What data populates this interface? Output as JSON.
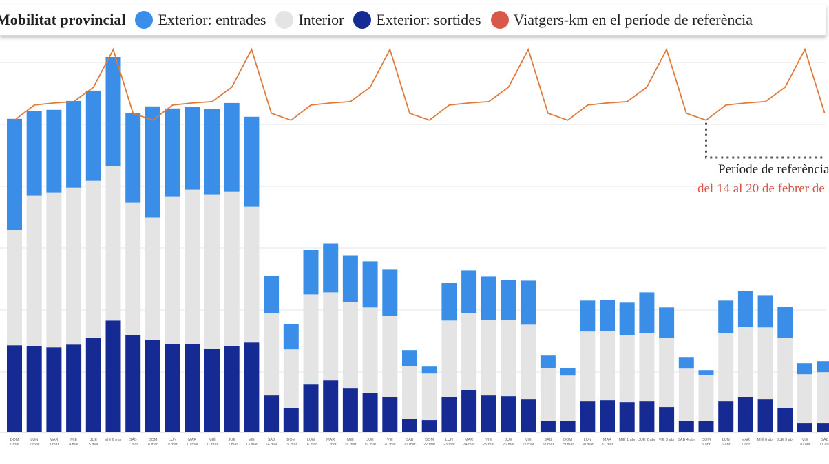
{
  "legend": {
    "title": "Mobilitat provincial",
    "items": [
      {
        "label": "Exterior: entrades",
        "color": "#3a8ee8"
      },
      {
        "label": "Interior",
        "color": "#e4e4e4"
      },
      {
        "label": "Exterior: sortides",
        "color": "#162a94"
      },
      {
        "label": "Viatgers-km en el període de referència",
        "color": "#d8594a"
      }
    ]
  },
  "annotation": {
    "title": "Període de referència",
    "subtitle": "del 14 al 20 de febrer de"
  },
  "colors": {
    "entrades": "#3a8ee8",
    "interior": "#e4e4e4",
    "sortides": "#162a94",
    "line": "#e07a3a",
    "grid": "#e6e6e6",
    "dotted": "#555555"
  },
  "chart_data": {
    "type": "bar",
    "stacked": true,
    "grid": true,
    "categories": [
      [
        "DOM",
        "1 mar"
      ],
      [
        "LUN",
        "2 mar"
      ],
      [
        "MAR",
        "3 mar"
      ],
      [
        "MIÉ",
        "4 mar"
      ],
      [
        "JUE",
        "5 mar"
      ],
      [
        "VIE 6 mar",
        ""
      ],
      [
        "SÁB",
        "7 mar"
      ],
      [
        "DOM",
        "8 mar"
      ],
      [
        "LUN",
        "9 mar"
      ],
      [
        "MAR",
        "10 mar"
      ],
      [
        "MIÉ",
        "11 mar"
      ],
      [
        "JUE",
        "12 mar"
      ],
      [
        "VIE",
        "13 mar"
      ],
      [
        "SÁB",
        "14 mar"
      ],
      [
        "DOM",
        "15 mar"
      ],
      [
        "LUN",
        "16 mar"
      ],
      [
        "MAR",
        "17 mar"
      ],
      [
        "MIÉ",
        "18 mar"
      ],
      [
        "JUE",
        "19 mar"
      ],
      [
        "VIE",
        "20 mar"
      ],
      [
        "SÁB",
        "21 mar"
      ],
      [
        "DOM",
        "22 mar"
      ],
      [
        "LUN",
        "23 mar"
      ],
      [
        "MAR",
        "24 mar"
      ],
      [
        "VIE",
        "25 mar"
      ],
      [
        "JUE",
        "26 mar"
      ],
      [
        "VIE",
        "27 mar"
      ],
      [
        "SÁB",
        "28 mar"
      ],
      [
        "DOM",
        "29 mar"
      ],
      [
        "LUN",
        "30 mar"
      ],
      [
        "MAR",
        "31 mar"
      ],
      [
        "MIÉ 1 abr",
        ""
      ],
      [
        "JUE 2 abr",
        ""
      ],
      [
        "VIE 3 abr",
        ""
      ],
      [
        "SÁB 4 abr",
        ""
      ],
      [
        "DOM",
        "5 abr"
      ],
      [
        "LUN",
        "6 abr"
      ],
      [
        "MAR",
        "7 abr"
      ],
      [
        "MIÉ 8 abr",
        ""
      ],
      [
        "JUE 9 abr",
        ""
      ],
      [
        "VIE",
        "10 abr"
      ],
      [
        "SÁB",
        "11 abr"
      ]
    ],
    "series": [
      {
        "name": "Exterior: sortides",
        "values": [
          127,
          126,
          124,
          128,
          138,
          163,
          142,
          135,
          129,
          129,
          122,
          126,
          131,
          54,
          36,
          70,
          76,
          64,
          58,
          52,
          20,
          18,
          52,
          62,
          54,
          53,
          48,
          17,
          17,
          45,
          47,
          44,
          45,
          37,
          17,
          17,
          45,
          52,
          48,
          36,
          13,
          13
        ]
      },
      {
        "name": "Interior",
        "values": [
          168,
          219,
          225,
          229,
          229,
          225,
          193,
          178,
          215,
          225,
          225,
          225,
          198,
          120,
          85,
          131,
          128,
          126,
          124,
          118,
          77,
          68,
          111,
          112,
          110,
          111,
          109,
          77,
          66,
          102,
          101,
          98,
          100,
          101,
          76,
          67,
          100,
          102,
          105,
          102,
          72,
          75
        ]
      },
      {
        "name": "Exterior: entrades",
        "values": [
          162,
          123,
          121,
          126,
          131,
          159,
          130,
          162,
          128,
          120,
          124,
          129,
          131,
          54,
          37,
          65,
          71,
          68,
          67,
          67,
          23,
          10,
          55,
          62,
          63,
          58,
          64,
          18,
          11,
          45,
          45,
          47,
          59,
          44,
          16,
          7,
          47,
          52,
          47,
          45,
          16,
          16
        ]
      }
    ],
    "line": {
      "name": "Viatgers-km en el període de referència",
      "values": [
        455,
        477,
        480,
        482,
        503,
        558,
        465,
        455,
        477,
        480,
        482,
        503,
        558,
        465,
        455,
        477,
        480,
        482,
        503,
        558,
        465,
        455,
        477,
        480,
        482,
        503,
        558,
        465,
        455,
        477,
        480,
        482,
        503,
        558,
        465,
        455,
        477,
        480,
        482,
        503,
        558,
        465
      ]
    },
    "ylim": [
      0,
      560
    ]
  }
}
